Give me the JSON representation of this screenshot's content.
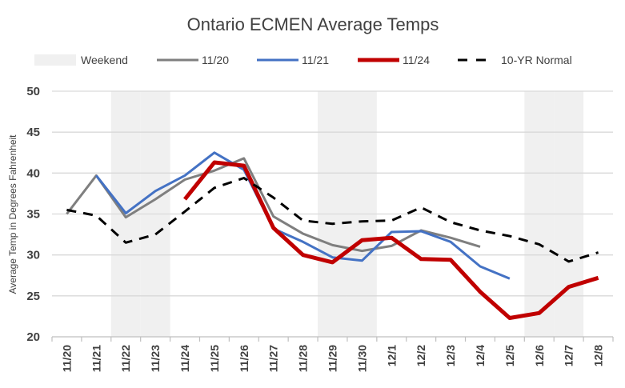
{
  "chart_data": {
    "type": "line",
    "title": "Ontario ECMEN Average Temps",
    "xlabel": "",
    "ylabel": "Average Temp in Degrees Fahrenheit",
    "ylim": [
      20,
      50
    ],
    "yticks": [
      20,
      25,
      30,
      35,
      40,
      45,
      50
    ],
    "grid": true,
    "legend_position": "top",
    "categories": [
      "11/20",
      "11/21",
      "11/22",
      "11/23",
      "11/24",
      "11/25",
      "11/26",
      "11/27",
      "11/28",
      "11/29",
      "11/30",
      "12/1",
      "12/2",
      "12/3",
      "12/4",
      "12/5",
      "12/6",
      "12/7",
      "12/8"
    ],
    "weekend_categories": [
      "11/22",
      "11/23",
      "11/29",
      "11/30",
      "12/6",
      "12/7"
    ],
    "weekend_label": "Weekend",
    "weekend_color": "#f0f0f0",
    "series": [
      {
        "name": "11/20",
        "color": "#7f7f7f",
        "dash": false,
        "values": [
          35.0,
          39.7,
          34.6,
          36.8,
          39.2,
          40.3,
          41.8,
          34.7,
          32.6,
          31.2,
          30.5,
          31.1,
          33.0,
          32.1,
          31.0,
          null,
          null,
          null,
          null
        ]
      },
      {
        "name": "11/21",
        "color": "#4472c4",
        "dash": false,
        "values": [
          null,
          39.7,
          35.1,
          37.8,
          39.7,
          42.5,
          40.4,
          33.2,
          31.6,
          29.7,
          29.3,
          32.8,
          32.9,
          31.6,
          28.6,
          27.1,
          null,
          null,
          null
        ]
      },
      {
        "name": "11/24",
        "color": "#c00000",
        "dash": false,
        "values": [
          null,
          null,
          null,
          null,
          36.8,
          41.3,
          40.9,
          33.3,
          30.0,
          29.1,
          31.8,
          32.1,
          29.5,
          29.4,
          25.5,
          22.3,
          22.9,
          26.1,
          27.2
        ]
      },
      {
        "name": "10-YR Normal",
        "color": "#000000",
        "dash": true,
        "values": [
          35.5,
          34.8,
          31.5,
          32.5,
          35.3,
          38.2,
          39.4,
          37.0,
          34.2,
          33.8,
          34.1,
          34.2,
          35.8,
          34.0,
          33.0,
          32.3,
          31.3,
          29.2,
          30.3
        ]
      }
    ]
  }
}
